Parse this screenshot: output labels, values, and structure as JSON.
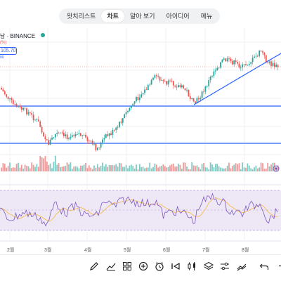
{
  "tabs": [
    {
      "label": "왓치리스트",
      "active": false
    },
    {
      "label": "차트",
      "active": true
    },
    {
      "label": "알아 보기",
      "active": false
    },
    {
      "label": "아이디어",
      "active": false
    },
    {
      "label": "메뉴",
      "active": false
    }
  ],
  "symbol": {
    "text": "남 · BINANCE",
    "change_pct": "(%)",
    "price": "105.70",
    "sub_value": "00"
  },
  "x_axis": {
    "labels": [
      "2월",
      "3월",
      "4월",
      "5월",
      "6월",
      "7월",
      "8월"
    ]
  },
  "colors": {
    "up": "#26a69a",
    "down": "#ef5350",
    "trendline": "#2962ff",
    "rsi_line": "#7e57c2",
    "rsi_ma": "#f5b93c",
    "rsi_band": "#ede7f6"
  },
  "toolbar": {
    "icons": [
      "pencil-icon",
      "chart-trend-icon",
      "grid-icon",
      "add-circle-icon",
      "alarm-icon",
      "replay-icon",
      "layers-icon",
      "indicators-icon",
      "compare-icon",
      "undo-icon",
      "redo-icon"
    ]
  },
  "chart_data": {
    "type": "candlestick",
    "indicator": "RSI",
    "horizontal_lines": 2,
    "trendlines": 1
  }
}
